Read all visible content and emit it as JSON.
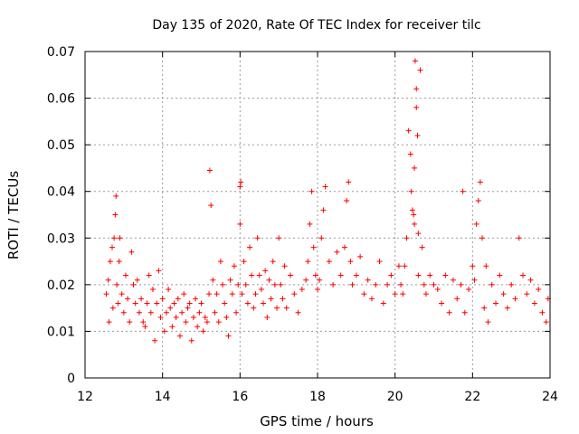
{
  "chart_data": {
    "type": "scatter",
    "title": "Day 135 of 2020, Rate Of TEC Index for receiver tilc",
    "xlabel": "GPS time / hours",
    "ylabel": "ROTI / TECUs",
    "xlim": [
      12,
      24
    ],
    "ylim": [
      0,
      0.07
    ],
    "xticks": [
      "12",
      "14",
      "16",
      "18",
      "20",
      "22",
      "24"
    ],
    "yticks": [
      "0",
      "0.01",
      "0.02",
      "0.03",
      "0.04",
      "0.05",
      "0.06",
      "0.07"
    ],
    "grid": true,
    "marker": "plus",
    "color": "#ff0000",
    "series": [
      {
        "name": "ROTI",
        "x": [
          12.55,
          12.6,
          12.62,
          12.65,
          12.7,
          12.72,
          12.75,
          12.78,
          12.8,
          12.82,
          12.85,
          12.88,
          12.9,
          12.95,
          13.0,
          13.05,
          13.1,
          13.15,
          13.2,
          13.25,
          13.3,
          13.35,
          13.4,
          13.45,
          13.5,
          13.55,
          13.6,
          13.65,
          13.7,
          13.75,
          13.8,
          13.85,
          13.9,
          13.95,
          14.0,
          14.05,
          14.1,
          14.15,
          14.2,
          14.25,
          14.3,
          14.35,
          14.4,
          14.45,
          14.5,
          14.55,
          14.6,
          14.65,
          14.7,
          14.75,
          14.8,
          14.85,
          14.9,
          14.95,
          15.0,
          15.05,
          15.1,
          15.15,
          15.2,
          15.22,
          15.25,
          15.3,
          15.35,
          15.4,
          15.45,
          15.5,
          15.55,
          15.6,
          15.65,
          15.7,
          15.75,
          15.8,
          15.85,
          15.9,
          15.95,
          16.0,
          16.0,
          16.02,
          16.05,
          16.1,
          16.15,
          16.2,
          16.25,
          16.3,
          16.35,
          16.4,
          16.45,
          16.5,
          16.55,
          16.6,
          16.65,
          16.7,
          16.75,
          16.8,
          16.85,
          16.9,
          16.95,
          17.0,
          17.05,
          17.1,
          17.15,
          17.2,
          17.3,
          17.4,
          17.5,
          17.6,
          17.7,
          17.75,
          17.8,
          17.85,
          17.9,
          17.95,
          18.0,
          18.05,
          18.1,
          18.15,
          18.2,
          18.3,
          18.4,
          18.5,
          18.6,
          18.7,
          18.75,
          18.8,
          18.85,
          18.9,
          19.0,
          19.1,
          19.2,
          19.3,
          19.4,
          19.5,
          19.6,
          19.7,
          19.8,
          19.9,
          20.0,
          20.1,
          20.15,
          20.2,
          20.25,
          20.3,
          20.35,
          20.4,
          20.42,
          20.45,
          20.48,
          20.5,
          20.5,
          20.52,
          20.55,
          20.55,
          20.58,
          20.6,
          20.6,
          20.65,
          20.7,
          20.75,
          20.8,
          20.9,
          21.0,
          21.1,
          21.2,
          21.3,
          21.4,
          21.5,
          21.6,
          21.7,
          21.75,
          21.8,
          21.9,
          22.0,
          22.05,
          22.1,
          22.15,
          22.2,
          22.25,
          22.3,
          22.35,
          22.4,
          22.5,
          22.6,
          22.7,
          22.8,
          22.9,
          23.0,
          23.1,
          23.2,
          23.3,
          23.4,
          23.5,
          23.6,
          23.7,
          23.8,
          23.9,
          23.95
        ],
        "y": [
          0.018,
          0.021,
          0.012,
          0.025,
          0.028,
          0.015,
          0.03,
          0.035,
          0.039,
          0.02,
          0.016,
          0.025,
          0.03,
          0.018,
          0.014,
          0.022,
          0.017,
          0.012,
          0.027,
          0.02,
          0.016,
          0.021,
          0.014,
          0.017,
          0.012,
          0.011,
          0.016,
          0.022,
          0.014,
          0.019,
          0.008,
          0.016,
          0.023,
          0.013,
          0.017,
          0.01,
          0.014,
          0.019,
          0.015,
          0.011,
          0.016,
          0.013,
          0.017,
          0.009,
          0.014,
          0.018,
          0.012,
          0.015,
          0.016,
          0.008,
          0.013,
          0.017,
          0.011,
          0.014,
          0.016,
          0.01,
          0.013,
          0.012,
          0.018,
          0.0445,
          0.037,
          0.021,
          0.014,
          0.018,
          0.012,
          0.025,
          0.02,
          0.016,
          0.013,
          0.009,
          0.021,
          0.018,
          0.024,
          0.014,
          0.02,
          0.033,
          0.041,
          0.042,
          0.018,
          0.025,
          0.02,
          0.016,
          0.028,
          0.022,
          0.015,
          0.018,
          0.03,
          0.022,
          0.019,
          0.016,
          0.023,
          0.013,
          0.021,
          0.017,
          0.025,
          0.02,
          0.015,
          0.03,
          0.02,
          0.017,
          0.024,
          0.015,
          0.022,
          0.018,
          0.014,
          0.019,
          0.021,
          0.025,
          0.033,
          0.04,
          0.028,
          0.022,
          0.019,
          0.021,
          0.03,
          0.036,
          0.041,
          0.025,
          0.02,
          0.027,
          0.022,
          0.028,
          0.038,
          0.042,
          0.025,
          0.02,
          0.022,
          0.026,
          0.018,
          0.021,
          0.017,
          0.02,
          0.025,
          0.016,
          0.02,
          0.022,
          0.018,
          0.024,
          0.02,
          0.018,
          0.024,
          0.03,
          0.053,
          0.048,
          0.04,
          0.036,
          0.035,
          0.045,
          0.033,
          0.068,
          0.062,
          0.058,
          0.052,
          0.031,
          0.022,
          0.066,
          0.028,
          0.02,
          0.018,
          0.022,
          0.02,
          0.019,
          0.016,
          0.022,
          0.014,
          0.021,
          0.017,
          0.02,
          0.04,
          0.014,
          0.019,
          0.024,
          0.021,
          0.033,
          0.038,
          0.042,
          0.03,
          0.015,
          0.024,
          0.012,
          0.02,
          0.016,
          0.022,
          0.018,
          0.015,
          0.02,
          0.017,
          0.03,
          0.022,
          0.018,
          0.021,
          0.016,
          0.019,
          0.014,
          0.012,
          0.017
        ]
      }
    ]
  }
}
